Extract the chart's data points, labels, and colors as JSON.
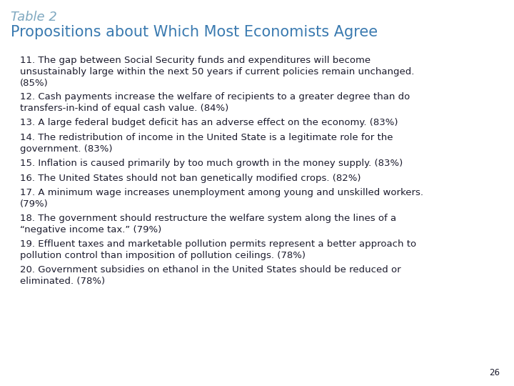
{
  "table_label": "Table 2",
  "title": "Propositions about Which Most Economists Agree",
  "items": [
    "11. The gap between Social Security funds and expenditures will become\nunsustainably large within the next 50 years if current policies remain unchanged.\n(85%)",
    "12. Cash payments increase the welfare of recipients to a greater degree than do\ntransfers-in-kind of equal cash value. (84%)",
    "13. A large federal budget deficit has an adverse effect on the economy. (83%)",
    "14. The redistribution of income in the United State is a legitimate role for the\ngovernment. (83%)",
    "15. Inflation is caused primarily by too much growth in the money supply. (83%)",
    "16. The United States should not ban genetically modified crops. (82%)",
    "17. A minimum wage increases unemployment among young and unskilled workers.\n(79%)",
    "18. The government should restructure the welfare system along the lines of a\n“negative income tax.” (79%)",
    "19. Effluent taxes and marketable pollution permits represent a better approach to\npollution control than imposition of pollution ceilings. (78%)",
    "20. Government subsidies on ethanol in the United States should be reduced or\neliminated. (78%)"
  ],
  "background_color": "#ffffff",
  "table_label_color": "#7fa8c0",
  "title_color": "#3a7ab0",
  "body_text_color": "#1c1c2e",
  "page_number": "26",
  "title_fontsize": 15,
  "table_label_fontsize": 13,
  "body_fontsize": 9.5,
  "page_num_fontsize": 8.5
}
